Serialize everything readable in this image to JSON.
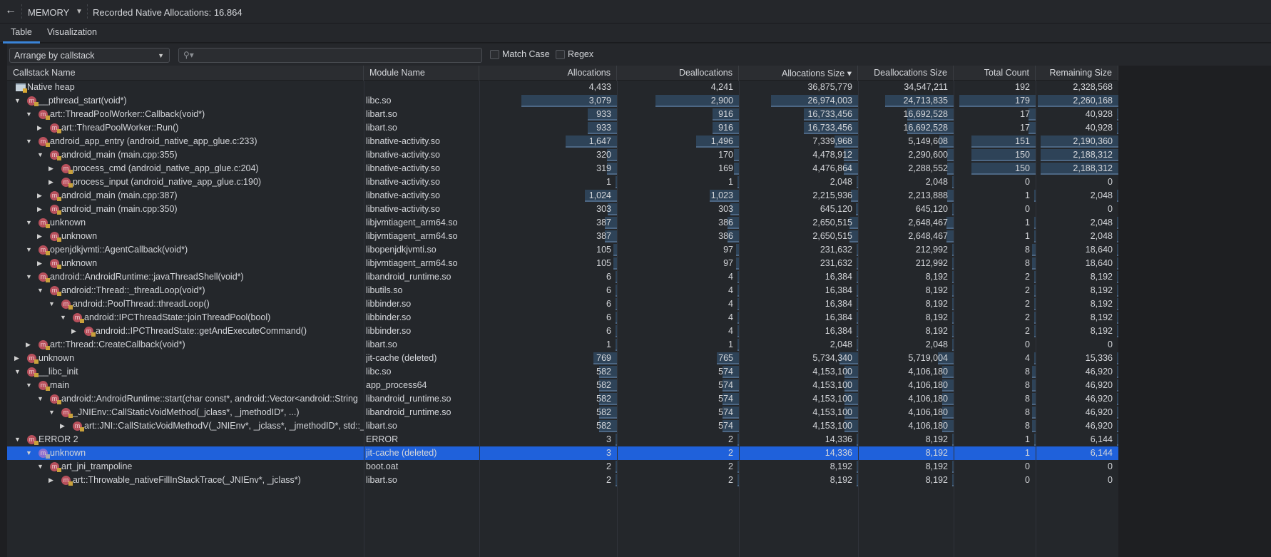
{
  "topbar": {
    "back_icon": "arrow-left-icon",
    "profiler": "MEMORY",
    "title": "Recorded Native Allocations: 16.864"
  },
  "tabs": [
    {
      "label": "Table",
      "active": true
    },
    {
      "label": "Visualization",
      "active": false
    }
  ],
  "toolbar": {
    "arrange": "Arrange by callstack",
    "search_placeholder": "",
    "match_case": "Match Case",
    "regex": "Regex"
  },
  "columns": [
    "Callstack Name",
    "Module Name",
    "Allocations",
    "Deallocations",
    "Allocations Size ▾",
    "Deallocations Size",
    "Total Count",
    "Remaining Size"
  ],
  "colors": {
    "bar": "#2e4358",
    "selected": "#1f61db",
    "method_icon": "#b8505c"
  },
  "rows": [
    {
      "name": "Native heap",
      "module": "",
      "v": [
        "4,433",
        "4,241",
        "36,875,779",
        "34,547,211",
        "192",
        "2,328,568"
      ],
      "depth": 0,
      "toggle": "",
      "icon": "folder"
    },
    {
      "name": "__pthread_start(void*)",
      "module": "libc.so",
      "v": [
        "3,079",
        "2,900",
        "26,974,003",
        "24,713,835",
        "179",
        "2,260,168"
      ],
      "depth": 0,
      "toggle": "expanded"
    },
    {
      "name": "art::ThreadPoolWorker::Callback(void*)",
      "module": "libart.so",
      "v": [
        "933",
        "916",
        "16,733,456",
        "16,692,528",
        "17",
        "40,928"
      ],
      "depth": 1,
      "toggle": "expanded"
    },
    {
      "name": "art::ThreadPoolWorker::Run()",
      "module": "libart.so",
      "v": [
        "933",
        "916",
        "16,733,456",
        "16,692,528",
        "17",
        "40,928"
      ],
      "depth": 2,
      "toggle": "collapsed"
    },
    {
      "name": "android_app_entry (android_native_app_glue.c:233)",
      "module": "libnative-activity.so",
      "v": [
        "1,647",
        "1,496",
        "7,339,968",
        "5,149,608",
        "151",
        "2,190,360"
      ],
      "depth": 1,
      "toggle": "expanded"
    },
    {
      "name": "android_main (main.cpp:355)",
      "module": "libnative-activity.so",
      "v": [
        "320",
        "170",
        "4,478,912",
        "2,290,600",
        "150",
        "2,188,312"
      ],
      "depth": 2,
      "toggle": "expanded"
    },
    {
      "name": "process_cmd (android_native_app_glue.c:204)",
      "module": "libnative-activity.so",
      "v": [
        "319",
        "169",
        "4,476,864",
        "2,288,552",
        "150",
        "2,188,312"
      ],
      "depth": 3,
      "toggle": "collapsed"
    },
    {
      "name": "process_input (android_native_app_glue.c:190)",
      "module": "libnative-activity.so",
      "v": [
        "1",
        "1",
        "2,048",
        "2,048",
        "0",
        "0"
      ],
      "depth": 3,
      "toggle": "collapsed"
    },
    {
      "name": "android_main (main.cpp:387)",
      "module": "libnative-activity.so",
      "v": [
        "1,024",
        "1,023",
        "2,215,936",
        "2,213,888",
        "1",
        "2,048"
      ],
      "depth": 2,
      "toggle": "collapsed"
    },
    {
      "name": "android_main (main.cpp:350)",
      "module": "libnative-activity.so",
      "v": [
        "303",
        "303",
        "645,120",
        "645,120",
        "0",
        "0"
      ],
      "depth": 2,
      "toggle": "collapsed"
    },
    {
      "name": "unknown",
      "module": "libjvmtiagent_arm64.so",
      "v": [
        "387",
        "386",
        "2,650,515",
        "2,648,467",
        "1",
        "2,048"
      ],
      "depth": 1,
      "toggle": "expanded"
    },
    {
      "name": "unknown",
      "module": "libjvmtiagent_arm64.so",
      "v": [
        "387",
        "386",
        "2,650,515",
        "2,648,467",
        "1",
        "2,048"
      ],
      "depth": 2,
      "toggle": "collapsed"
    },
    {
      "name": "openjdkjvmti::AgentCallback(void*)",
      "module": "libopenjdkjvmti.so",
      "v": [
        "105",
        "97",
        "231,632",
        "212,992",
        "8",
        "18,640"
      ],
      "depth": 1,
      "toggle": "expanded"
    },
    {
      "name": "unknown",
      "module": "libjvmtiagent_arm64.so",
      "v": [
        "105",
        "97",
        "231,632",
        "212,992",
        "8",
        "18,640"
      ],
      "depth": 2,
      "toggle": "collapsed"
    },
    {
      "name": "android::AndroidRuntime::javaThreadShell(void*)",
      "module": "libandroid_runtime.so",
      "v": [
        "6",
        "4",
        "16,384",
        "8,192",
        "2",
        "8,192"
      ],
      "depth": 1,
      "toggle": "expanded"
    },
    {
      "name": "android::Thread::_threadLoop(void*)",
      "module": "libutils.so",
      "v": [
        "6",
        "4",
        "16,384",
        "8,192",
        "2",
        "8,192"
      ],
      "depth": 2,
      "toggle": "expanded"
    },
    {
      "name": "android::PoolThread::threadLoop()",
      "module": "libbinder.so",
      "v": [
        "6",
        "4",
        "16,384",
        "8,192",
        "2",
        "8,192"
      ],
      "depth": 3,
      "toggle": "expanded"
    },
    {
      "name": "android::IPCThreadState::joinThreadPool(bool)",
      "module": "libbinder.so",
      "v": [
        "6",
        "4",
        "16,384",
        "8,192",
        "2",
        "8,192"
      ],
      "depth": 4,
      "toggle": "expanded"
    },
    {
      "name": "android::IPCThreadState::getAndExecuteCommand()",
      "module": "libbinder.so",
      "v": [
        "6",
        "4",
        "16,384",
        "8,192",
        "2",
        "8,192"
      ],
      "depth": 5,
      "toggle": "collapsed"
    },
    {
      "name": "art::Thread::CreateCallback(void*)",
      "module": "libart.so",
      "v": [
        "1",
        "1",
        "2,048",
        "2,048",
        "0",
        "0"
      ],
      "depth": 1,
      "toggle": "collapsed"
    },
    {
      "name": "unknown",
      "module": "jit-cache (deleted)",
      "v": [
        "769",
        "765",
        "5,734,340",
        "5,719,004",
        "4",
        "15,336"
      ],
      "depth": 0,
      "toggle": "collapsed"
    },
    {
      "name": "__libc_init",
      "module": "libc.so",
      "v": [
        "582",
        "574",
        "4,153,100",
        "4,106,180",
        "8",
        "46,920"
      ],
      "depth": 0,
      "toggle": "expanded"
    },
    {
      "name": "main",
      "module": "app_process64",
      "v": [
        "582",
        "574",
        "4,153,100",
        "4,106,180",
        "8",
        "46,920"
      ],
      "depth": 1,
      "toggle": "expanded"
    },
    {
      "name": "android::AndroidRuntime::start(char const*, android::Vector<android::String",
      "module": "libandroid_runtime.so",
      "v": [
        "582",
        "574",
        "4,153,100",
        "4,106,180",
        "8",
        "46,920"
      ],
      "depth": 2,
      "toggle": "expanded"
    },
    {
      "name": "_JNIEnv::CallStaticVoidMethod(_jclass*, _jmethodID*, ...)",
      "module": "libandroid_runtime.so",
      "v": [
        "582",
        "574",
        "4,153,100",
        "4,106,180",
        "8",
        "46,920"
      ],
      "depth": 3,
      "toggle": "expanded"
    },
    {
      "name": "art::JNI::CallStaticVoidMethodV(_JNIEnv*, _jclass*, _jmethodID*, std::_",
      "module": "libart.so",
      "v": [
        "582",
        "574",
        "4,153,100",
        "4,106,180",
        "8",
        "46,920"
      ],
      "depth": 4,
      "toggle": "collapsed"
    },
    {
      "name": "ERROR 2",
      "module": "ERROR",
      "v": [
        "3",
        "2",
        "14,336",
        "8,192",
        "1",
        "6,144"
      ],
      "depth": 0,
      "toggle": "expanded"
    },
    {
      "name": "unknown",
      "module": "jit-cache (deleted)",
      "v": [
        "3",
        "2",
        "14,336",
        "8,192",
        "1",
        "6,144"
      ],
      "depth": 1,
      "toggle": "expanded",
      "selected": true
    },
    {
      "name": "art_jni_trampoline",
      "module": "boot.oat",
      "v": [
        "2",
        "2",
        "8,192",
        "8,192",
        "0",
        "0"
      ],
      "depth": 2,
      "toggle": "expanded"
    },
    {
      "name": "art::Throwable_nativeFillInStackTrace(_JNIEnv*, _jclass*)",
      "module": "libart.so",
      "v": [
        "2",
        "2",
        "8,192",
        "8,192",
        "0",
        "0"
      ],
      "depth": 3,
      "toggle": "collapsed"
    }
  ]
}
